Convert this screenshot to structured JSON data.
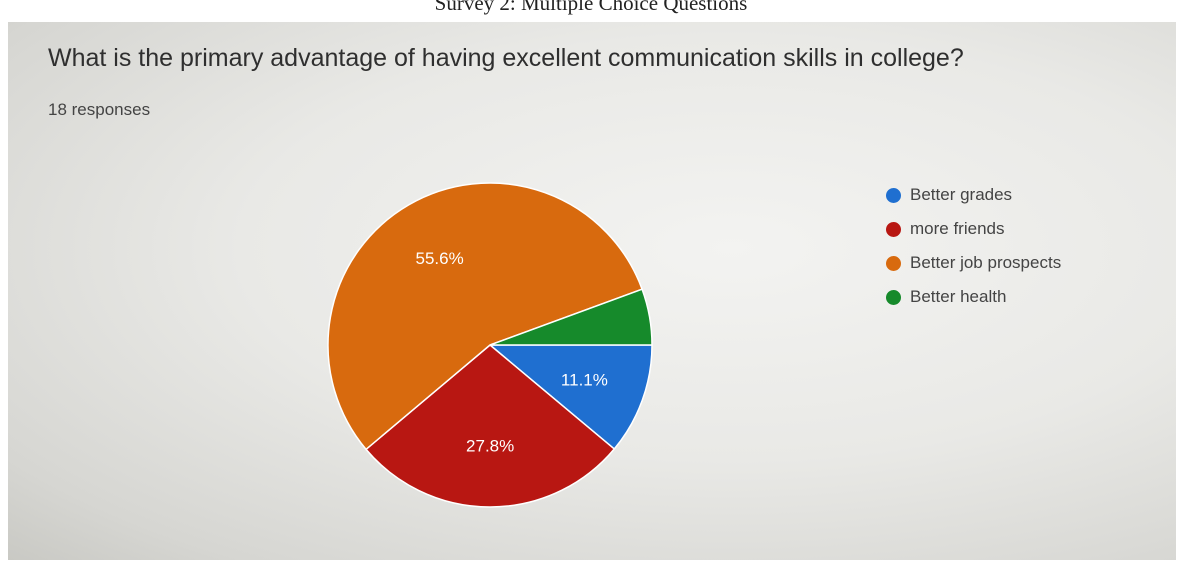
{
  "caption": "Survey 2: Multiple Choice Questions",
  "question": "What is the primary advantage of having excellent communication skills in college?",
  "responses": "18 responses",
  "chart_data": {
    "type": "pie",
    "title": "What is the primary advantage of having excellent communication skills in college?",
    "legend_position": "right",
    "slices": [
      {
        "label": "Better grades",
        "value": 11.1,
        "display": "11.1%",
        "color": "#1f6fd0"
      },
      {
        "label": "more friends",
        "value": 27.8,
        "display": "27.8%",
        "color": "#b81712"
      },
      {
        "label": "Better job prospects",
        "value": 55.6,
        "display": "55.6%",
        "color": "#d86a0e"
      },
      {
        "label": "Better health",
        "value": 5.6,
        "display": "",
        "color": "#168a2b"
      }
    ]
  }
}
